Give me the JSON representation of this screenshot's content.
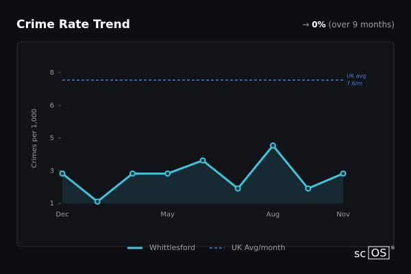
{
  "chart_data": {
    "type": "line",
    "title": "Crime Rate Trend",
    "change_arrow": "→",
    "change": "0%",
    "change_period": "(over 9 months)",
    "ylabel": "Crimes per 1,000",
    "categories": [
      "Dec",
      null,
      null,
      "May",
      null,
      null,
      "Aug",
      null,
      "Nov"
    ],
    "series": [
      {
        "name": "Whittlesford",
        "color": "#3ec6e0",
        "values": [
          2.6,
          1.1,
          2.6,
          2.6,
          3.3,
          1.8,
          4.1,
          1.8,
          2.6
        ]
      }
    ],
    "reference_line": {
      "name": "UK Avg/month",
      "label": "UK avg",
      "value": 7.6,
      "value_label": "7.6/m",
      "color": "#4a7fd8"
    },
    "ylim": [
      1,
      8
    ],
    "yticks": [
      1,
      {
        "value": 2.75,
        "label": "3"
      },
      {
        "value": 4.5,
        "label": "5"
      },
      {
        "value": 6.25,
        "label": "6"
      },
      8
    ],
    "brand": "sc",
    "brand_box": "OS",
    "brand_mark": "®"
  }
}
